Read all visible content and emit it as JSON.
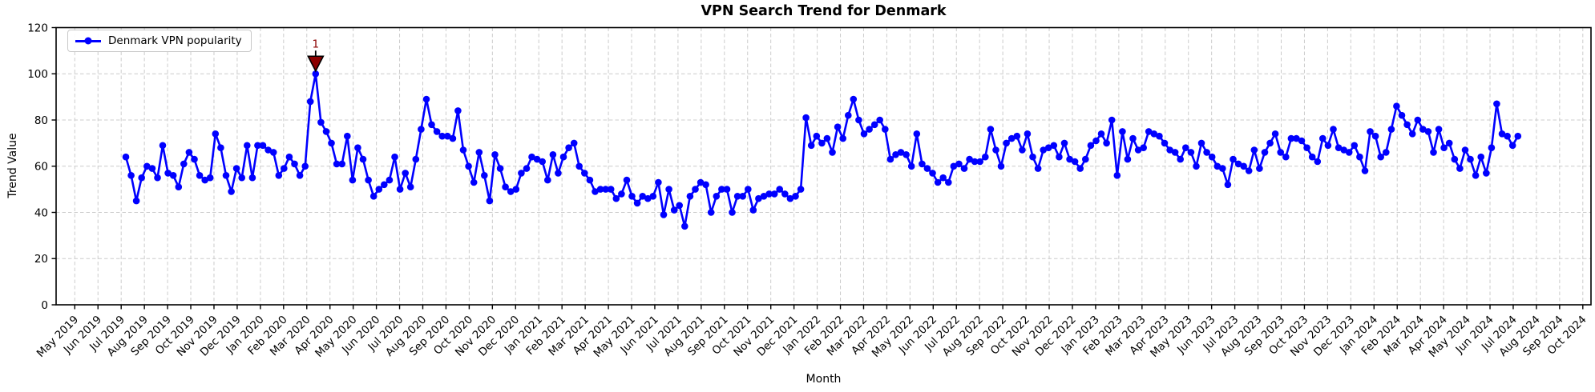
{
  "figure": {
    "title": "VPN Search Trend for Denmark",
    "xlabel": "Month",
    "ylabel": "Trend Value"
  },
  "chart_data": {
    "type": "line",
    "title": "VPN Search Trend for Denmark",
    "xlabel": "Month",
    "ylabel": "Trend Value",
    "grid": true,
    "grid_style": "dashed",
    "legend_position": "upper left",
    "ylim": [
      0,
      120
    ],
    "y_ticks": [
      0,
      20,
      40,
      60,
      80,
      100,
      120
    ],
    "x_tick_labels": [
      "May 2019",
      "Jun 2019",
      "Jul 2019",
      "Aug 2019",
      "Sep 2019",
      "Oct 2019",
      "Nov 2019",
      "Dec 2019",
      "Jan 2020",
      "Feb 2020",
      "Mar 2020",
      "Apr 2020",
      "May 2020",
      "Jun 2020",
      "Jul 2020",
      "Aug 2020",
      "Sep 2020",
      "Oct 2020",
      "Nov 2020",
      "Dec 2020",
      "Jan 2021",
      "Feb 2021",
      "Mar 2021",
      "Apr 2021",
      "May 2021",
      "Jun 2021",
      "Jul 2021",
      "Aug 2021",
      "Sep 2021",
      "Oct 2021",
      "Nov 2021",
      "Dec 2021",
      "Jan 2022",
      "Feb 2022",
      "Mar 2022",
      "Apr 2022",
      "May 2022",
      "Jun 2022",
      "Jul 2022",
      "Aug 2022",
      "Sep 2022",
      "Oct 2022",
      "Nov 2022",
      "Dec 2022",
      "Jan 2023",
      "Feb 2023",
      "Mar 2023",
      "Apr 2023",
      "May 2023",
      "Jun 2023",
      "Jul 2023",
      "Aug 2023",
      "Sep 2023",
      "Oct 2023",
      "Nov 2023",
      "Dec 2023",
      "Jan 2024",
      "Feb 2024",
      "Mar 2024",
      "Apr 2024",
      "May 2024",
      "Jun 2024",
      "Jul 2024",
      "Aug 2024",
      "Sep 2024",
      "Oct 2024"
    ],
    "series": [
      {
        "name": "Denmark VPN popularity",
        "color": "#0000ff",
        "marker": "circle",
        "cadence": "weekly",
        "x_start_month_index": 2.2,
        "x_end_month_index": 62.2,
        "values": [
          64,
          56,
          45,
          55,
          60,
          59,
          55,
          69,
          57,
          56,
          51,
          61,
          66,
          63,
          56,
          54,
          55,
          74,
          68,
          56,
          49,
          59,
          55,
          69,
          55,
          69,
          69,
          67,
          66,
          56,
          59,
          64,
          61,
          56,
          60,
          88,
          100,
          79,
          75,
          70,
          61,
          61,
          73,
          54,
          68,
          63,
          54,
          47,
          50,
          52,
          54,
          64,
          50,
          57,
          51,
          63,
          76,
          89,
          78,
          75,
          73,
          73,
          72,
          84,
          67,
          60,
          53,
          66,
          56,
          45,
          65,
          59,
          51,
          49,
          50,
          57,
          59,
          64,
          63,
          62,
          54,
          65,
          57,
          64,
          68,
          70,
          60,
          57,
          54,
          49,
          50,
          50,
          50,
          46,
          48,
          54,
          47,
          44,
          47,
          46,
          47,
          53,
          39,
          50,
          41,
          43,
          34,
          47,
          50,
          53,
          52,
          40,
          47,
          50,
          50,
          40,
          47,
          47,
          50,
          41,
          46,
          47,
          48,
          48,
          50,
          48,
          46,
          47,
          50,
          81,
          69,
          73,
          70,
          72,
          66,
          77,
          72,
          82,
          89,
          80,
          74,
          76,
          78,
          80,
          76,
          63,
          65,
          66,
          65,
          60,
          74,
          61,
          59,
          57,
          53,
          55,
          53,
          60,
          61,
          59,
          63,
          62,
          62,
          64,
          76,
          67,
          60,
          70,
          72,
          73,
          67,
          74,
          64,
          59,
          67,
          68,
          69,
          64,
          70,
          63,
          62,
          59,
          63,
          69,
          71,
          74,
          70,
          80,
          56,
          75,
          63,
          72,
          67,
          68,
          75,
          74,
          73,
          70,
          67,
          66,
          63,
          68,
          66,
          60,
          70,
          66,
          64,
          60,
          59,
          52,
          63,
          61,
          60,
          58,
          67,
          59,
          66,
          70,
          74,
          66,
          64,
          72,
          72,
          71,
          68,
          64,
          62,
          72,
          69,
          76,
          68,
          67,
          66,
          69,
          64,
          58,
          75,
          73,
          64,
          66,
          76,
          86,
          82,
          78,
          74,
          80,
          76,
          75,
          66,
          76,
          68,
          70,
          63,
          59,
          67,
          63,
          56,
          64,
          57,
          68,
          87,
          74,
          73,
          69,
          73
        ]
      }
    ],
    "annotation": {
      "label": "1",
      "point_index": 36,
      "value": 100,
      "color": "#8b0000"
    }
  },
  "colors": {
    "line": "#0000ff",
    "annotation": "#8b0000",
    "grid": "#cccccc",
    "axis": "#000000",
    "background": "#ffffff"
  }
}
